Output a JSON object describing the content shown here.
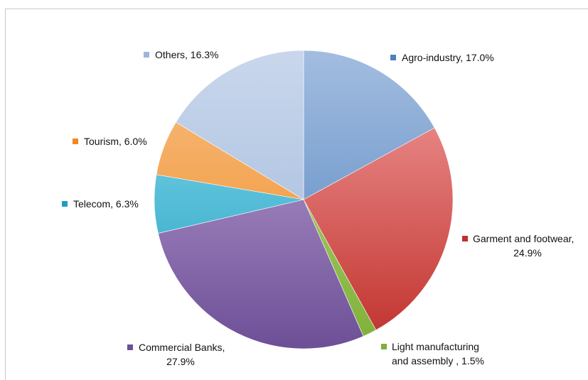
{
  "chart_data": {
    "type": "pie",
    "title": "",
    "slices": [
      {
        "label": "Agro-industry",
        "value": 17.0,
        "label_lines": [
          "Agro-industry, 17.0%"
        ],
        "color": "#4f81bd",
        "colorLight": "#a3bde0"
      },
      {
        "label": "Garment and footwear",
        "value": 24.9,
        "label_lines": [
          "Garment and footwear,",
          "24.9%"
        ],
        "color": "#c0302b",
        "colorLight": "#f3a0a0"
      },
      {
        "label": "Light manufacturing and assembly",
        "value": 1.5,
        "label_lines": [
          "Light manufacturing",
          "and assembly , 1.5%"
        ],
        "color": "#7fb03a",
        "colorLight": "#b8da7a"
      },
      {
        "label": "Commercial Banks",
        "value": 27.9,
        "label_lines": [
          "Commercial Banks,",
          "27.9%"
        ],
        "color": "#6d4f97",
        "colorLight": "#c1a9d8"
      },
      {
        "label": "Telecom",
        "value": 6.3,
        "label_lines": [
          "Telecom, 6.3%"
        ],
        "color": "#1f9fbd",
        "colorLight": "#8ddcf2"
      },
      {
        "label": "Tourism",
        "value": 6.0,
        "label_lines": [
          "Tourism, 6.0%"
        ],
        "color": "#f08a1e",
        "colorLight": "#f7bf86"
      },
      {
        "label": "Others",
        "value": 16.3,
        "label_lines": [
          "Others, 16.3%"
        ],
        "color": "#9db6da",
        "colorLight": "#c9d7ec"
      }
    ],
    "legend": "none",
    "start_angle": "12 o'clock, clockwise"
  }
}
